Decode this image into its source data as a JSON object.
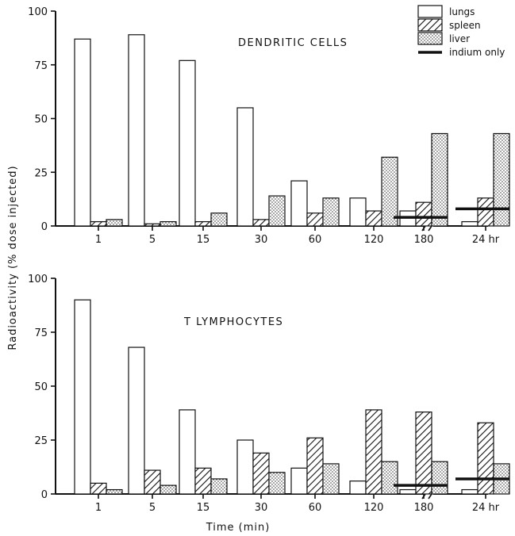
{
  "chart_data": [
    {
      "type": "bar",
      "title": "DENDRITIC CELLS",
      "categories": [
        "1",
        "5",
        "15",
        "30",
        "60",
        "120",
        "180",
        "24 hr"
      ],
      "ylim": [
        0,
        100
      ],
      "yticks": [
        0,
        25,
        50,
        75,
        100
      ],
      "series": [
        {
          "name": "lungs",
          "values": [
            87,
            89,
            77,
            55,
            21,
            13,
            7,
            2
          ]
        },
        {
          "name": "spleen",
          "values": [
            2,
            1,
            2,
            3,
            6,
            7,
            11,
            13
          ]
        },
        {
          "name": "liver",
          "values": [
            3,
            2,
            6,
            14,
            13,
            32,
            43,
            43
          ]
        }
      ],
      "indium_only": [
        0,
        0,
        0,
        0,
        0,
        0,
        4,
        8
      ]
    },
    {
      "type": "bar",
      "title": "T LYMPHOCYTES",
      "categories": [
        "1",
        "5",
        "15",
        "30",
        "60",
        "120",
        "180",
        "24 hr"
      ],
      "ylim": [
        0,
        100
      ],
      "yticks": [
        0,
        25,
        50,
        75,
        100
      ],
      "series": [
        {
          "name": "lungs",
          "values": [
            90,
            68,
            39,
            25,
            12,
            6,
            2,
            2
          ]
        },
        {
          "name": "spleen",
          "values": [
            5,
            11,
            12,
            19,
            26,
            39,
            38,
            33
          ]
        },
        {
          "name": "liver",
          "values": [
            2,
            4,
            7,
            10,
            14,
            15,
            15,
            14
          ]
        }
      ],
      "indium_only": [
        0,
        0,
        0,
        0,
        0,
        0,
        4,
        7
      ]
    }
  ],
  "xlabel": "Time (min)",
  "ylabel": "Radioactivity (% dose injected)",
  "legend": {
    "position": "top-right",
    "items": [
      "lungs",
      "spleen",
      "liver",
      "indium only"
    ]
  },
  "colors": {
    "ink": "#111111",
    "background": "#ffffff"
  }
}
